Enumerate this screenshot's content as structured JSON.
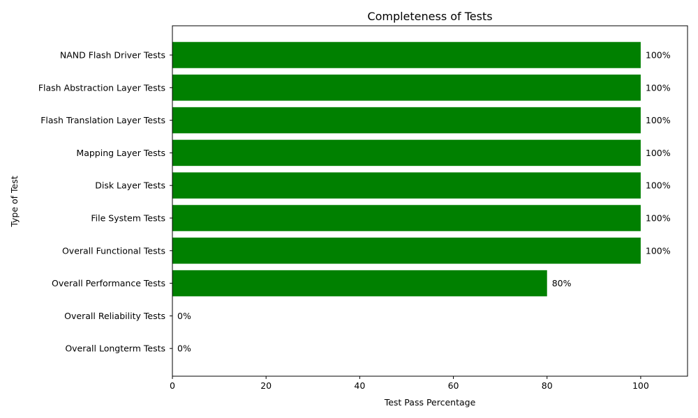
{
  "chart_data": {
    "type": "bar",
    "orientation": "horizontal",
    "title": "Completeness of Tests",
    "xlabel": "Test Pass Percentage",
    "ylabel": "Type of Test",
    "xlim": [
      0,
      110
    ],
    "xticks": [
      0,
      20,
      40,
      60,
      80,
      100
    ],
    "grid": false,
    "bar_color": "#008000",
    "categories": [
      "NAND Flash Driver Tests",
      "Flash Abstraction Layer Tests",
      "Flash Translation Layer Tests",
      "Mapping Layer Tests",
      "Disk Layer Tests",
      "File System Tests",
      "Overall Functional Tests",
      "Overall Performance Tests",
      "Overall Reliability Tests",
      "Overall Longterm Tests"
    ],
    "values": [
      100,
      100,
      100,
      100,
      100,
      100,
      100,
      80,
      0,
      0
    ],
    "data_labels": [
      "100%",
      "100%",
      "100%",
      "100%",
      "100%",
      "100%",
      "100%",
      "80%",
      "0%",
      "0%"
    ]
  }
}
